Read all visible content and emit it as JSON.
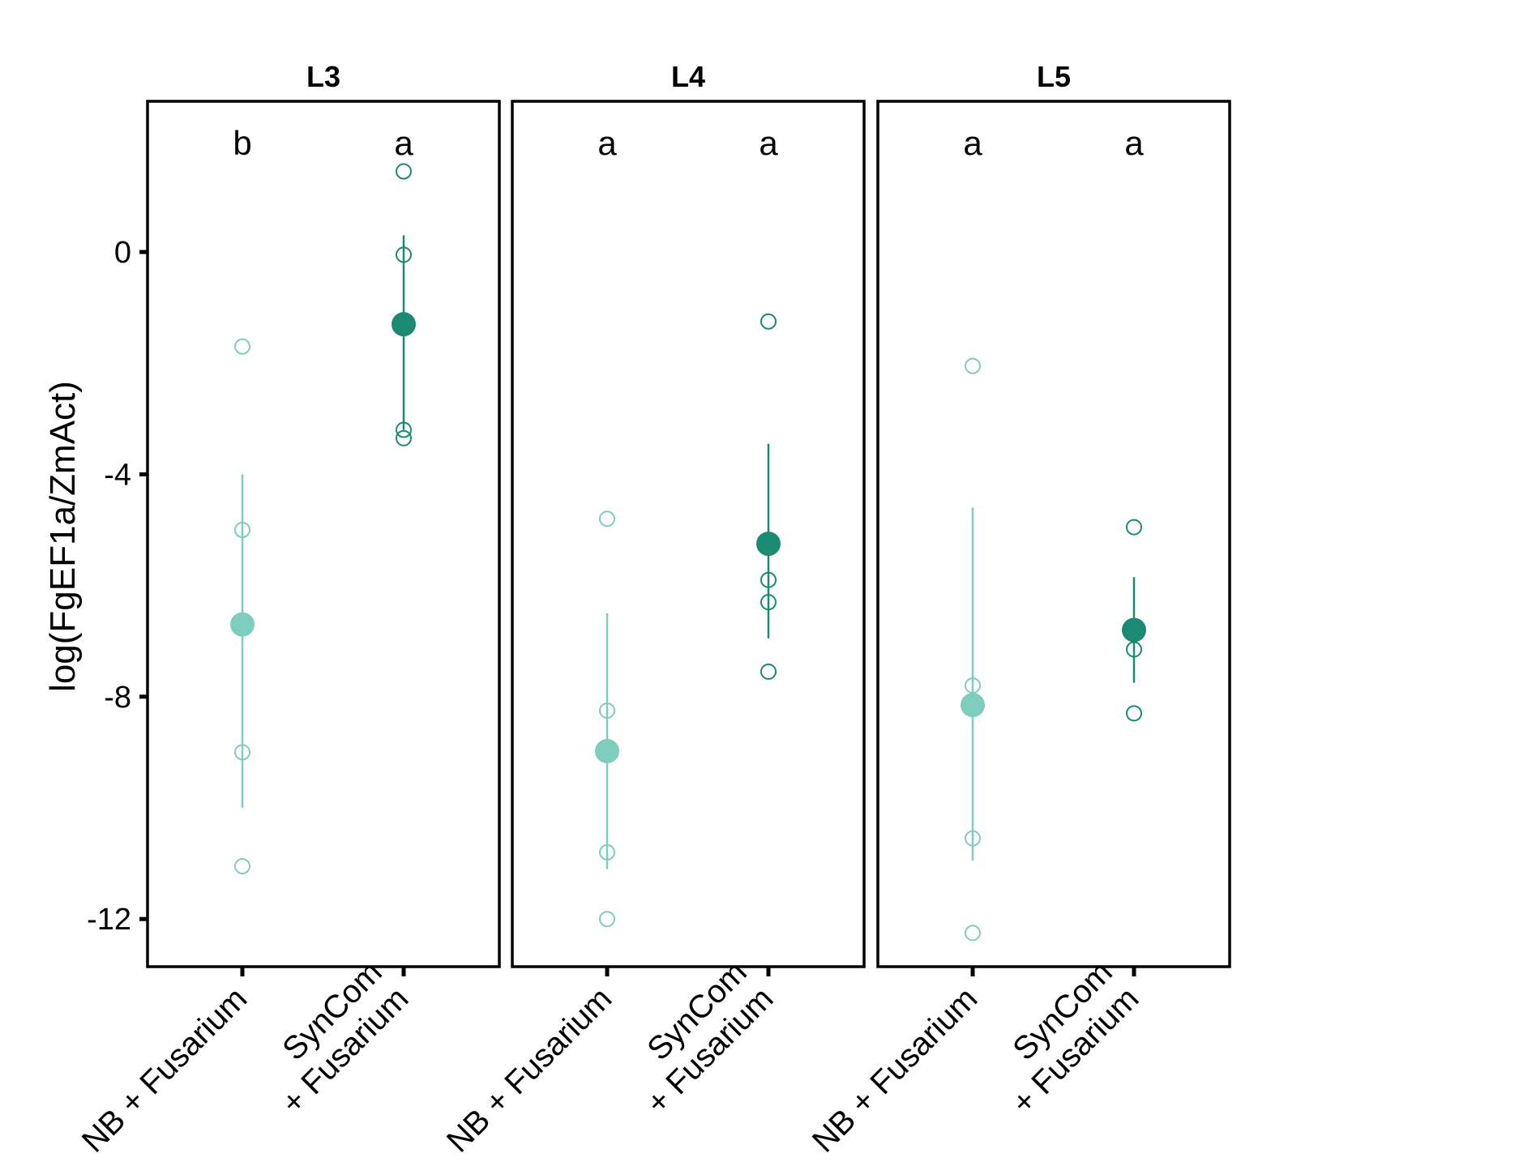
{
  "chart_data": {
    "type": "scatter",
    "ylabel": "log(FgEF1a/ZmAct)",
    "ylim": [
      -12.9,
      2.7
    ],
    "yticks": [
      0,
      -4,
      -8,
      -12
    ],
    "ytick_labels": [
      "0",
      "-4",
      "-8",
      "-12"
    ],
    "categories": [
      "NB + Fusarium",
      "SynCom\n+ Fusarium"
    ],
    "colors": {
      "NB + Fusarium": "#7fcdbf",
      "SynCom\n+ Fusarium": "#1b8a73"
    },
    "facets": [
      {
        "title": "L3",
        "groups": [
          {
            "category": "NB + Fusarium",
            "letter": "b",
            "mean": -6.7,
            "error_low": -10.0,
            "error_high": -4.0,
            "points": [
              -1.7,
              -5.0,
              -9.0,
              -11.05
            ]
          },
          {
            "category": "SynCom\n+ Fusarium",
            "letter": "a",
            "mean": -1.3,
            "error_low": -3.2,
            "error_high": 0.3,
            "points": [
              1.45,
              -0.05,
              -3.2,
              -3.35
            ]
          }
        ]
      },
      {
        "title": "L4",
        "groups": [
          {
            "category": "NB + Fusarium",
            "letter": "a",
            "mean": -8.98,
            "error_low": -11.1,
            "error_high": -6.5,
            "points": [
              -4.8,
              -8.25,
              -10.8,
              -12.0
            ]
          },
          {
            "category": "SynCom\n+ Fusarium",
            "letter": "a",
            "mean": -5.25,
            "error_low": -6.95,
            "error_high": -3.45,
            "points": [
              -1.25,
              -5.9,
              -6.3,
              -7.55
            ]
          }
        ]
      },
      {
        "title": "L5",
        "groups": [
          {
            "category": "NB + Fusarium",
            "letter": "a",
            "mean": -8.15,
            "error_low": -10.95,
            "error_high": -4.6,
            "points": [
              -2.05,
              -7.8,
              -10.55,
              -12.25
            ]
          },
          {
            "category": "SynCom\n+ Fusarium",
            "letter": "a",
            "mean": -6.8,
            "error_low": -7.75,
            "error_high": -5.85,
            "points": [
              -4.95,
              -7.15,
              -8.3
            ]
          }
        ]
      }
    ]
  }
}
